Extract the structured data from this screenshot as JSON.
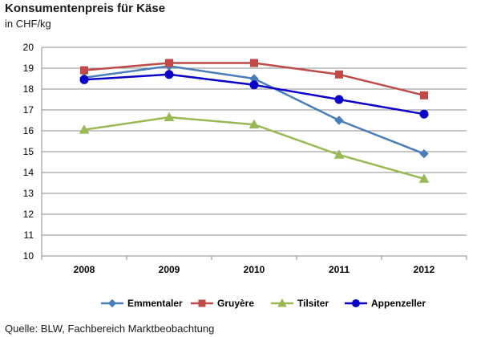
{
  "chart_data": {
    "type": "line",
    "title": "Konsumentenpreis für Käse",
    "subtitle": "in CHF/kg",
    "source": "Quelle: BLW, Fachbereich Marktbeobachtung",
    "x": [
      "2008",
      "2009",
      "2010",
      "2011",
      "2012"
    ],
    "ylim": [
      10,
      20
    ],
    "yticks": [
      10,
      11,
      12,
      13,
      14,
      15,
      16,
      17,
      18,
      19,
      20
    ],
    "grid": true,
    "legend": "bottom",
    "series": [
      {
        "name": "Emmentaler",
        "values": [
          18.55,
          19.1,
          18.5,
          16.5,
          14.9
        ],
        "color": "#4a7ebb",
        "marker": "diamond"
      },
      {
        "name": "Gruyère",
        "values": [
          18.9,
          19.25,
          19.25,
          18.7,
          17.7
        ],
        "color": "#be4b48",
        "marker": "square"
      },
      {
        "name": "Tilsiter",
        "values": [
          16.05,
          16.65,
          16.3,
          14.85,
          13.7
        ],
        "color": "#98b954",
        "marker": "triangle"
      },
      {
        "name": "Appenzeller",
        "values": [
          18.45,
          18.7,
          18.2,
          17.5,
          16.8
        ],
        "color": "#0b00c8",
        "marker": "circle"
      }
    ]
  }
}
